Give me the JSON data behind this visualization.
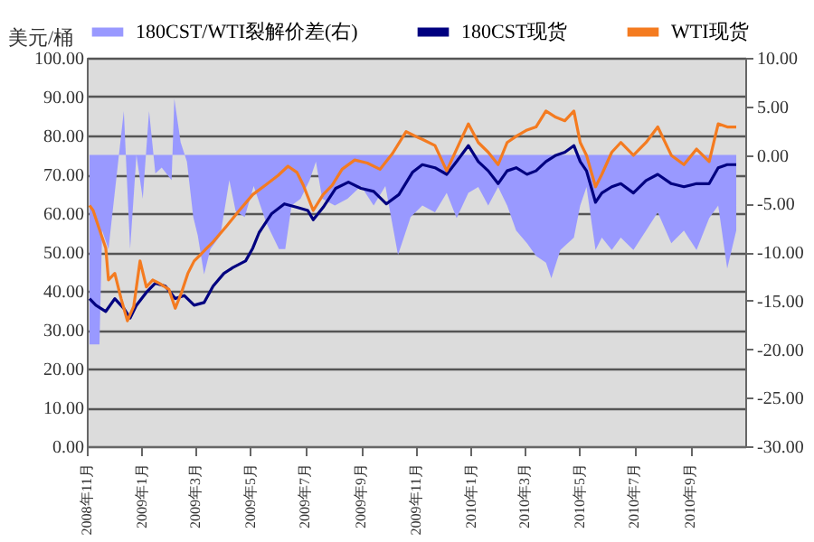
{
  "chart_data": {
    "type": "line",
    "ylabel": "美元/桶",
    "legend": "top",
    "grid": "y",
    "xlim": [
      "2008-11-01",
      "2010-11-01"
    ],
    "xticks": [
      {
        "value": "2008-11-01",
        "label": "2008年11月"
      },
      {
        "value": "2009-01-01",
        "label": "2009年1月"
      },
      {
        "value": "2009-03-01",
        "label": "2009年3月"
      },
      {
        "value": "2009-05-01",
        "label": "2009年5月"
      },
      {
        "value": "2009-07-01",
        "label": "2009年7月"
      },
      {
        "value": "2009-09-01",
        "label": "2009年9月"
      },
      {
        "value": "2009-11-01",
        "label": "2009年11月"
      },
      {
        "value": "2010-01-01",
        "label": "2010年1月"
      },
      {
        "value": "2010-03-01",
        "label": "2010年3月"
      },
      {
        "value": "2010-05-01",
        "label": "2010年5月"
      },
      {
        "value": "2010-07-01",
        "label": "2010年7月"
      },
      {
        "value": "2010-09-01",
        "label": "2010年9月"
      }
    ],
    "ylim": [
      0,
      100
    ],
    "yticks": [
      {
        "value": 0,
        "label": "0.00"
      },
      {
        "value": 10,
        "label": "10.00"
      },
      {
        "value": 20,
        "label": "20.00"
      },
      {
        "value": 30,
        "label": "30.00"
      },
      {
        "value": 40,
        "label": "40.00"
      },
      {
        "value": 50,
        "label": "50.00"
      },
      {
        "value": 60,
        "label": "60.00"
      },
      {
        "value": 70,
        "label": "70.00"
      },
      {
        "value": 80,
        "label": "80.00"
      },
      {
        "value": 90,
        "label": "90.00"
      },
      {
        "value": 100,
        "label": "100.00"
      }
    ],
    "y2lim": [
      -30,
      10
    ],
    "y2ticks": [
      {
        "value": -30,
        "label": "-30.00"
      },
      {
        "value": -25,
        "label": "-25.00"
      },
      {
        "value": -20,
        "label": "-20.00"
      },
      {
        "value": -15,
        "label": "-15.00"
      },
      {
        "value": -10,
        "label": "-10.00"
      },
      {
        "value": -5,
        "label": "-5.00"
      },
      {
        "value": 0,
        "label": "0.00"
      },
      {
        "value": 5,
        "label": "5.00"
      },
      {
        "value": 10,
        "label": "10.00"
      }
    ],
    "series": [
      {
        "name": "180CST/WTI裂解价差(右)",
        "type": "area",
        "axis": "y2",
        "color": "#9999ff",
        "x": [
          "2008-11-04",
          "2008-11-15",
          "2008-11-18",
          "2008-11-25",
          "2008-12-12",
          "2008-12-19",
          "2008-12-26",
          "2009-01-02",
          "2009-01-09",
          "2009-01-16",
          "2009-01-23",
          "2009-02-03",
          "2009-02-06",
          "2009-02-13",
          "2009-02-20",
          "2009-02-27",
          "2009-03-04",
          "2009-03-11",
          "2009-03-18",
          "2009-03-29",
          "2009-04-08",
          "2009-04-15",
          "2009-04-25",
          "2009-05-05",
          "2009-05-19",
          "2009-06-02",
          "2009-06-09",
          "2009-06-16",
          "2009-06-26",
          "2009-07-06",
          "2009-07-13",
          "2009-07-20",
          "2009-08-03",
          "2009-08-17",
          "2009-09-01",
          "2009-09-15",
          "2009-09-28",
          "2009-10-12",
          "2009-10-26",
          "2009-11-08",
          "2009-11-22",
          "2009-12-05",
          "2009-12-16",
          "2009-12-29",
          "2010-01-09",
          "2010-01-20",
          "2010-01-31",
          "2010-02-10",
          "2010-02-20",
          "2010-03-04",
          "2010-03-14",
          "2010-03-25",
          "2010-03-31",
          "2010-04-10",
          "2010-04-25",
          "2010-05-02",
          "2010-05-09",
          "2010-05-19",
          "2010-05-26",
          "2010-06-06",
          "2010-06-16",
          "2010-06-30",
          "2010-07-14",
          "2010-07-27",
          "2010-08-11",
          "2010-08-25",
          "2010-09-08",
          "2010-09-22",
          "2010-10-02",
          "2010-10-12",
          "2010-10-22"
        ],
        "values": [
          -19.5,
          -19.5,
          -7.8,
          -9.7,
          4.5,
          -9.7,
          0,
          -4.5,
          4.5,
          -1.9,
          -1.3,
          -2.6,
          5.8,
          1.3,
          -0.7,
          -6.4,
          -8.3,
          -12.3,
          -9.7,
          -8.3,
          -2.6,
          -5.8,
          -6.4,
          -3.2,
          -7.0,
          -9.7,
          -9.7,
          -5.2,
          -4.5,
          -2.6,
          -0.7,
          -4.5,
          -5.2,
          -4.5,
          -3.2,
          -5.2,
          -3.2,
          -10.3,
          -6.4,
          -5.2,
          -5.9,
          -3.9,
          -6.5,
          -3.9,
          -3.3,
          -5.2,
          -3.3,
          -5.2,
          -7.8,
          -9.1,
          -10.4,
          -11.1,
          -12.7,
          -9.8,
          -8.5,
          -5.2,
          -3.3,
          -9.8,
          -8.5,
          -9.8,
          -8.5,
          -9.8,
          -7.8,
          -5.9,
          -9.1,
          -7.8,
          -9.8,
          -6.5,
          -5.2,
          -11.7,
          -7.8
        ]
      },
      {
        "name": "180CST现货",
        "color": "#000080",
        "x": [
          "2008-11-04",
          "2008-11-11",
          "2008-11-22",
          "2008-12-02",
          "2008-12-12",
          "2008-12-19",
          "2008-12-26",
          "2009-01-06",
          "2009-01-16",
          "2009-01-27",
          "2009-02-07",
          "2009-02-17",
          "2009-02-28",
          "2009-03-11",
          "2009-03-21",
          "2009-04-02",
          "2009-04-12",
          "2009-04-26",
          "2009-05-04",
          "2009-05-11",
          "2009-05-25",
          "2009-06-08",
          "2009-06-22",
          "2009-07-04",
          "2009-07-10",
          "2009-07-21",
          "2009-08-04",
          "2009-08-18",
          "2009-09-01",
          "2009-09-15",
          "2009-09-29",
          "2009-10-13",
          "2009-10-28",
          "2009-11-08",
          "2009-11-22",
          "2009-12-05",
          "2009-12-16",
          "2009-12-29",
          "2010-01-09",
          "2010-01-20",
          "2010-01-31",
          "2010-02-10",
          "2010-02-20",
          "2010-03-04",
          "2010-03-14",
          "2010-03-25",
          "2010-04-05",
          "2010-04-15",
          "2010-04-25",
          "2010-05-02",
          "2010-05-09",
          "2010-05-19",
          "2010-05-26",
          "2010-06-06",
          "2010-06-16",
          "2010-06-30",
          "2010-07-14",
          "2010-07-27",
          "2010-08-11",
          "2010-08-25",
          "2010-09-08",
          "2010-09-22",
          "2010-10-02",
          "2010-10-12",
          "2010-10-22"
        ],
        "values": [
          38,
          36.3,
          34.7,
          38,
          35.5,
          33,
          36.3,
          39.6,
          42,
          41.2,
          38,
          38.8,
          36.3,
          37,
          41.2,
          44.5,
          46,
          47.7,
          51,
          55,
          59.9,
          62.4,
          61.5,
          60.7,
          58.3,
          61.5,
          66.4,
          68,
          66.4,
          65.6,
          62.4,
          64.8,
          70.5,
          72.5,
          71.7,
          70,
          73.3,
          77.4,
          73.3,
          70.9,
          67.6,
          70.9,
          71.7,
          70,
          70.9,
          73.3,
          74.9,
          75.7,
          77.4,
          73.3,
          70.9,
          62.8,
          65.2,
          66.8,
          67.6,
          65.2,
          68.4,
          70,
          67.6,
          66.8,
          67.6,
          67.6,
          71.7,
          72.5,
          72.5
        ]
      },
      {
        "name": "WTI现货",
        "color": "#f47b20",
        "x": [
          "2008-11-04",
          "2008-11-08",
          "2008-11-15",
          "2008-11-22",
          "2008-11-25",
          "2008-12-02",
          "2008-12-09",
          "2008-12-16",
          "2008-12-23",
          "2008-12-30",
          "2009-01-06",
          "2009-01-13",
          "2009-01-20",
          "2009-01-31",
          "2009-02-07",
          "2009-02-14",
          "2009-02-21",
          "2009-02-28",
          "2009-03-07",
          "2009-03-14",
          "2009-03-21",
          "2009-04-05",
          "2009-04-19",
          "2009-05-04",
          "2009-05-18",
          "2009-06-01",
          "2009-06-12",
          "2009-06-22",
          "2009-06-29",
          "2009-07-10",
          "2009-07-21",
          "2009-07-31",
          "2009-08-11",
          "2009-08-25",
          "2009-09-08",
          "2009-09-22",
          "2009-10-06",
          "2009-10-21",
          "2009-11-04",
          "2009-11-08",
          "2009-11-22",
          "2009-12-05",
          "2009-12-16",
          "2009-12-29",
          "2010-01-09",
          "2010-01-20",
          "2010-01-31",
          "2010-02-10",
          "2010-02-20",
          "2010-03-04",
          "2010-03-14",
          "2010-03-25",
          "2010-04-05",
          "2010-04-15",
          "2010-04-25",
          "2010-05-02",
          "2010-05-09",
          "2010-05-19",
          "2010-05-26",
          "2010-06-06",
          "2010-06-16",
          "2010-06-30",
          "2010-07-14",
          "2010-07-27",
          "2010-08-11",
          "2010-08-25",
          "2010-09-08",
          "2010-09-22",
          "2010-10-02",
          "2010-10-12",
          "2010-10-22"
        ],
        "values": [
          62,
          60.7,
          55.8,
          51,
          42.8,
          44.5,
          38,
          32.3,
          36,
          47.7,
          41,
          42.8,
          42,
          40.4,
          35.5,
          39.6,
          44.5,
          47.7,
          49.3,
          51,
          52.6,
          56.7,
          60.7,
          64.8,
          67.2,
          69.7,
          72.1,
          70.5,
          67.2,
          60.7,
          64.8,
          67.2,
          71.3,
          73.7,
          72.9,
          71.3,
          75.4,
          81,
          79.4,
          79,
          77.4,
          70.9,
          76.5,
          83,
          78.2,
          75.7,
          72.5,
          78.2,
          79.8,
          81.4,
          82.2,
          86.3,
          84.7,
          83.8,
          86.3,
          78.2,
          74.9,
          66.8,
          70,
          75.7,
          78.2,
          74.9,
          78.2,
          82.2,
          74.9,
          72.5,
          76.5,
          73.3,
          83,
          82.2,
          82.2
        ]
      }
    ]
  }
}
